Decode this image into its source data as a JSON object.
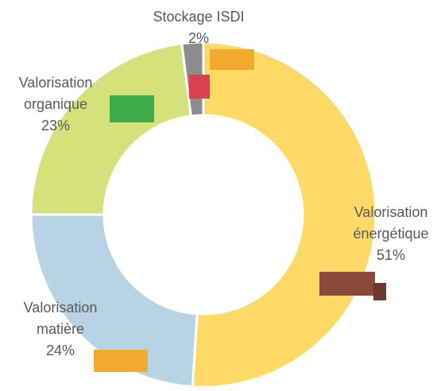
{
  "chart_data": {
    "type": "donut",
    "categories": [
      "Valorisation énergétique",
      "Valorisation matière",
      "Valorisation organique",
      "Stockage ISDI"
    ],
    "values": [
      51,
      24,
      23,
      2
    ],
    "value_labels": [
      "51%",
      "24%",
      "23%",
      "2%"
    ],
    "colors": [
      "#ffd966",
      "#b8d3e6",
      "#d5e17b",
      "#8c8c8c"
    ]
  }
}
